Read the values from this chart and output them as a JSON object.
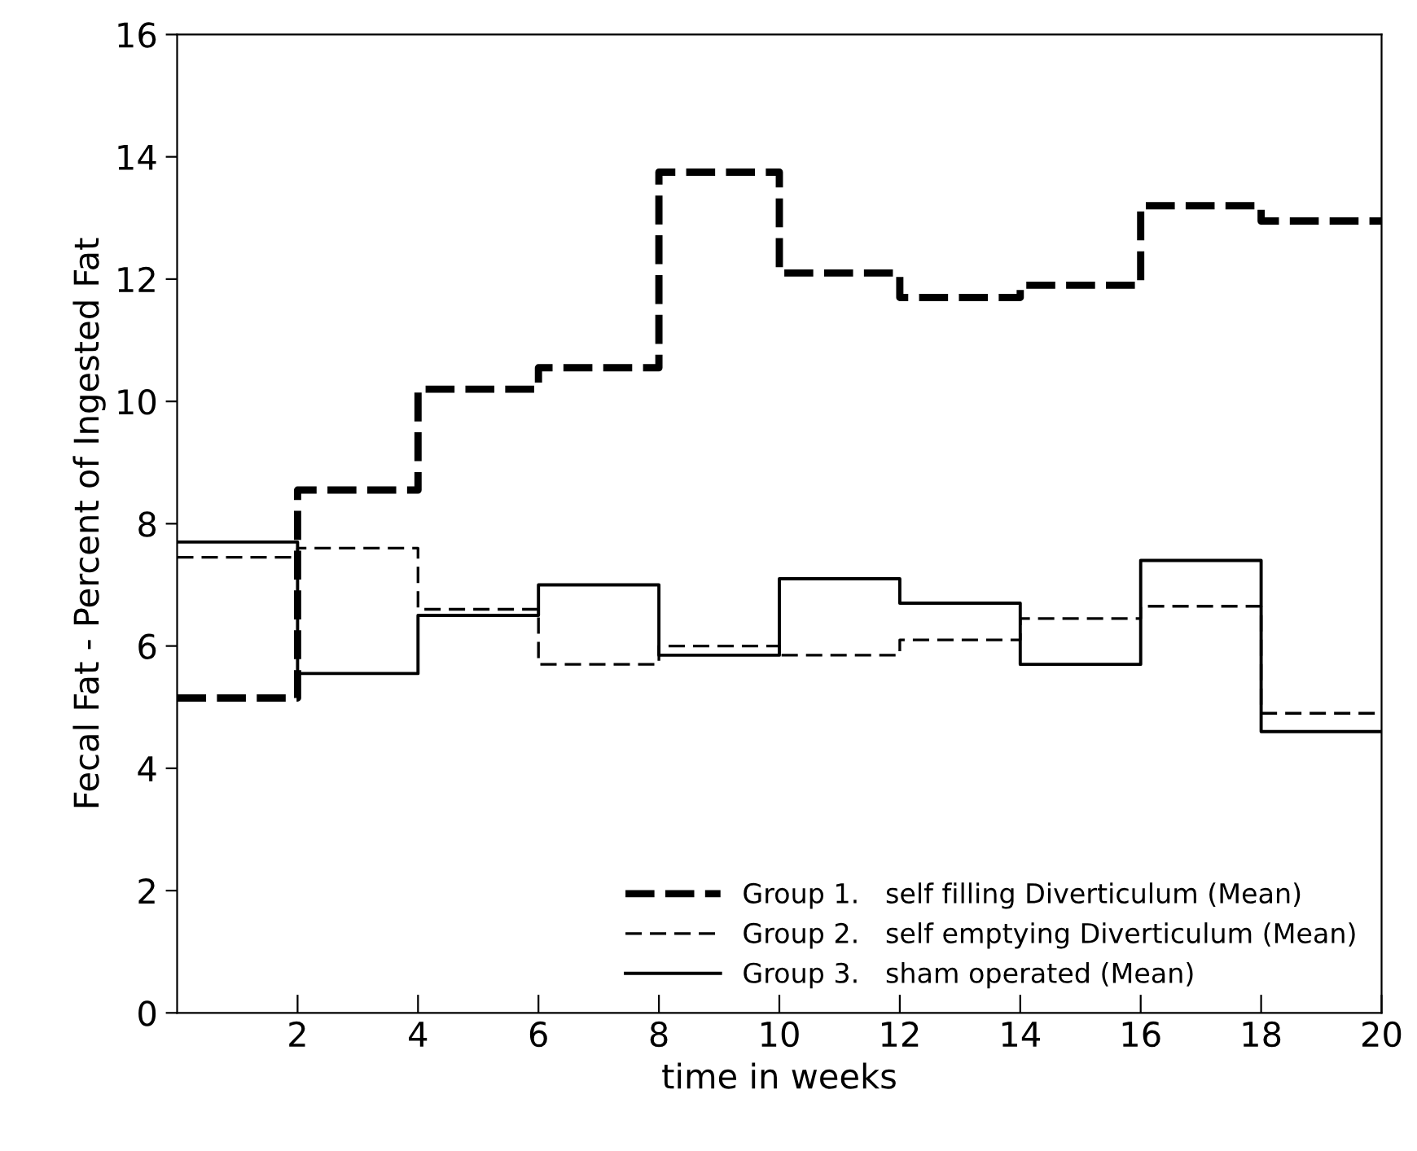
{
  "chart_data": {
    "type": "step",
    "xlabel": "time in weeks",
    "ylabel": "Fecal Fat - Percent of Ingested Fat",
    "x": [
      0,
      2,
      4,
      6,
      8,
      10,
      12,
      14,
      16,
      18,
      20
    ],
    "series": [
      {
        "name": "Group 1.   self filling Diverticulum (Mean)",
        "color": "#000000",
        "line_style": "dashed",
        "values": [
          5.15,
          8.55,
          10.2,
          10.55,
          13.75,
          12.1,
          11.7,
          11.9,
          13.2,
          12.95,
          12.95
        ]
      },
      {
        "name": "Group 2.   self emptying Diverticulum (Mean)",
        "color": "#000000",
        "line_style": "dashed",
        "values": [
          7.45,
          7.6,
          6.6,
          5.7,
          6.0,
          5.85,
          6.1,
          6.45,
          6.65,
          4.9,
          4.9
        ]
      },
      {
        "name": "Group 3.   sham operated (Mean)",
        "color": "#000000",
        "line_style": "solid",
        "values": [
          7.7,
          5.55,
          6.5,
          7.0,
          5.85,
          7.1,
          6.7,
          5.7,
          7.4,
          4.6,
          4.6
        ]
      }
    ],
    "xlim": [
      0,
      20
    ],
    "ylim": [
      0,
      16
    ],
    "xticks": [
      2,
      4,
      6,
      8,
      10,
      12,
      14,
      16,
      18,
      20
    ],
    "yticks": [
      0,
      2,
      4,
      6,
      8,
      10,
      12,
      14,
      16
    ],
    "grid": false,
    "legend": "bottom right",
    "marker": "none"
  }
}
